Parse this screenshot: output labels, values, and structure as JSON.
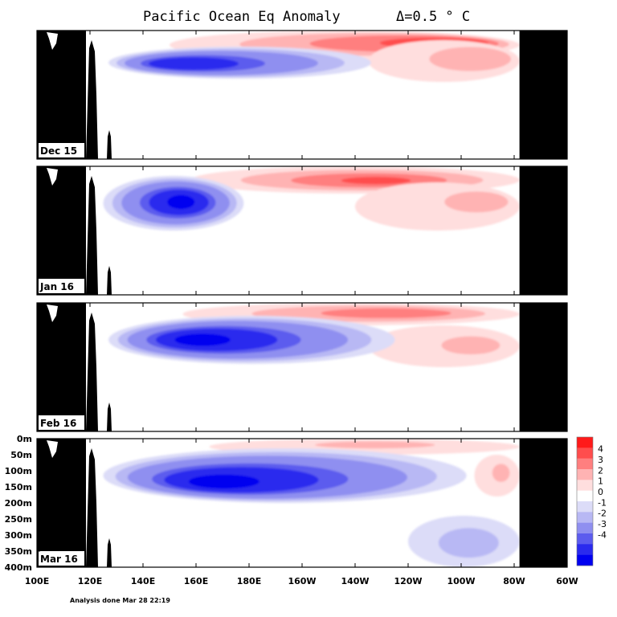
{
  "chart_data": {
    "type": "heatmap",
    "title": "Pacific Ocean Eq Anomaly",
    "interval_label": "Δ=0.5 ° C",
    "x_ticks": [
      "100E",
      "120E",
      "140E",
      "160E",
      "180E",
      "160W",
      "140W",
      "120W",
      "100W",
      "80W",
      "60W"
    ],
    "xlim_lon_east": [
      100,
      300
    ],
    "y_ticks": [
      "0m",
      "50m",
      "100m",
      "150m",
      "200m",
      "250m",
      "300m",
      "350m",
      "400m"
    ],
    "ylim_depth_m": [
      0,
      400
    ],
    "y_ticks_shown_on_panel": "Mar 16",
    "colorbar_labels": [
      "4",
      "3",
      "2",
      "1",
      "0",
      "-1",
      "-2",
      "-3",
      "-4"
    ],
    "colorbar_colors": [
      "#ff1a1a",
      "#ff4d4d",
      "#ff7f7f",
      "#ffb3b3",
      "#ffdede",
      "#ffffff",
      "#dcdcf8",
      "#b8b8f4",
      "#8f8ff0",
      "#5c5cee",
      "#2a2aee",
      "#0000f0"
    ],
    "panels": [
      {
        "label": "Dec 15",
        "features": [
          {
            "sign": "warm",
            "lon": [
              150,
              282
            ],
            "depth": [
              0,
              90
            ],
            "peak_lon": 265,
            "peak_depth": 35,
            "peak_value": 4.0
          },
          {
            "sign": "warm",
            "lon": [
              225,
              282
            ],
            "depth": [
              30,
              160
            ],
            "peak_lon": 275,
            "peak_depth": 80,
            "peak_value": 2.0
          },
          {
            "sign": "cold",
            "lon": [
              127,
              226
            ],
            "depth": [
              50,
              150
            ],
            "peak_lon": 150,
            "peak_depth": 105,
            "peak_value": -3.5
          }
        ]
      },
      {
        "label": "Jan 16",
        "features": [
          {
            "sign": "warm",
            "lon": [
              158,
              282
            ],
            "depth": [
              0,
              85
            ],
            "peak_lon": 230,
            "peak_depth": 45,
            "peak_value": 3.5
          },
          {
            "sign": "warm",
            "lon": [
              220,
              282
            ],
            "depth": [
              50,
              200
            ],
            "peak_lon": 275,
            "peak_depth": 100,
            "peak_value": 1.5
          },
          {
            "sign": "cold",
            "lon": [
              125,
              178
            ],
            "depth": [
              30,
              200
            ],
            "peak_lon": 155,
            "peak_depth": 110,
            "peak_value": -4.0
          }
        ]
      },
      {
        "label": "Feb 16",
        "features": [
          {
            "sign": "warm",
            "lon": [
              155,
              282
            ],
            "depth": [
              0,
              70
            ],
            "peak_lon": 240,
            "peak_depth": 30,
            "peak_value": 3.0
          },
          {
            "sign": "warm",
            "lon": [
              225,
              282
            ],
            "depth": [
              70,
              200
            ],
            "peak_lon": 270,
            "peak_depth": 130,
            "peak_value": 1.5
          },
          {
            "sign": "cold",
            "lon": [
              127,
              235
            ],
            "depth": [
              40,
              190
            ],
            "peak_lon": 158,
            "peak_depth": 115,
            "peak_value": -4.0
          }
        ]
      },
      {
        "label": "Mar 16",
        "features": [
          {
            "sign": "warm",
            "lon": [
              165,
              282
            ],
            "depth": [
              0,
              50
            ],
            "peak_lon": 230,
            "peak_depth": 15,
            "peak_value": 1.5
          },
          {
            "sign": "warm",
            "lon": [
              265,
              282
            ],
            "depth": [
              50,
              180
            ],
            "peak_lon": 276,
            "peak_depth": 100,
            "peak_value": 1.5
          },
          {
            "sign": "cold",
            "lon": [
              125,
              262
            ],
            "depth": [
              30,
              200
            ],
            "peak_lon": 165,
            "peak_depth": 140,
            "peak_value": -4.0
          },
          {
            "sign": "cold",
            "lon": [
              240,
              282
            ],
            "depth": [
              240,
              400
            ],
            "peak_lon": 265,
            "peak_depth": 330,
            "peak_value": -1.0
          }
        ]
      }
    ],
    "land_mask_east_lon": 282
  },
  "footer_note": "Analysis done Mar 28 22:19"
}
